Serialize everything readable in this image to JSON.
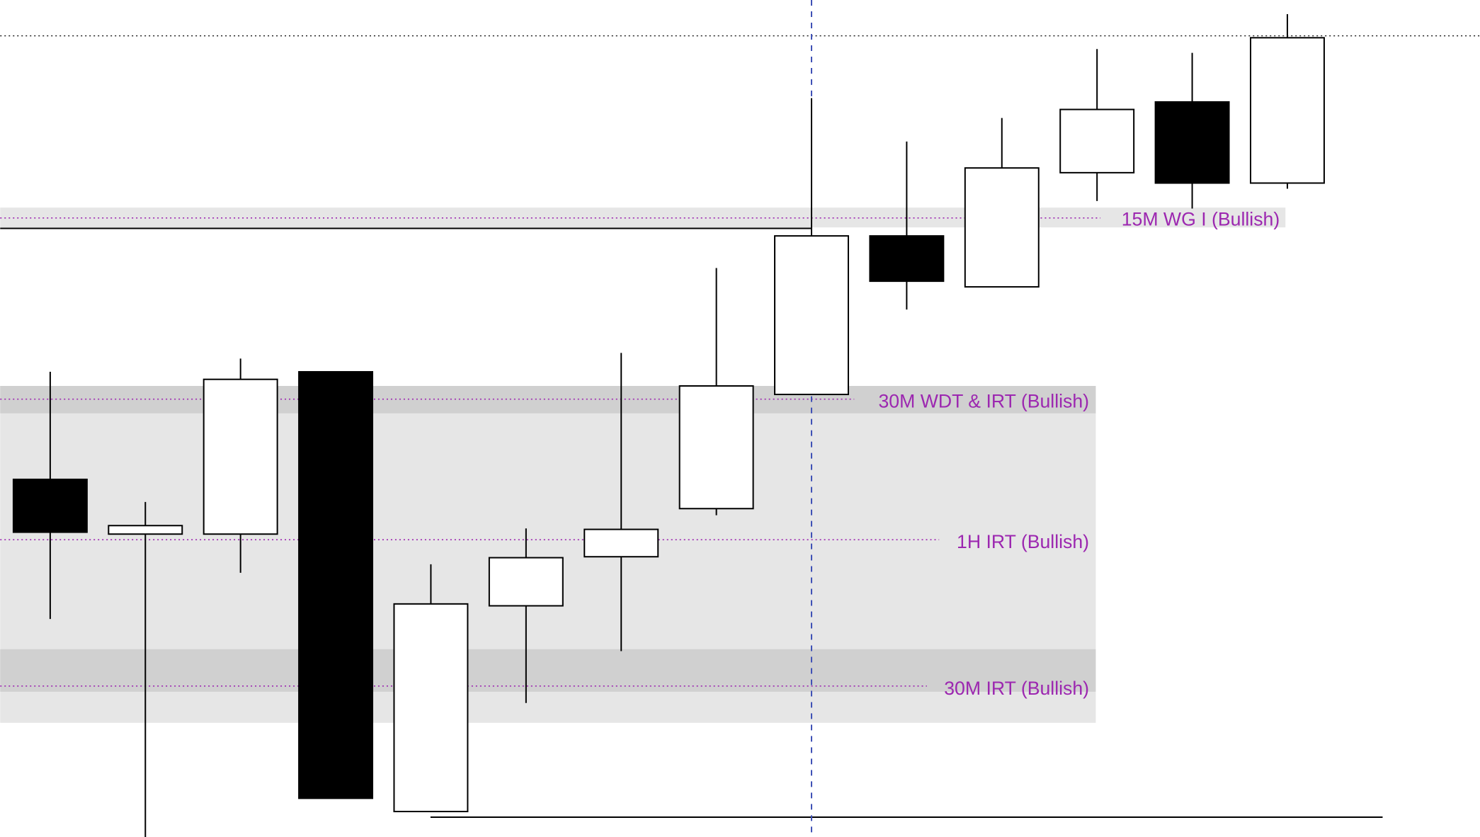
{
  "chart_data": {
    "type": "candlestick",
    "price_units": "relative (no axis printed)",
    "candles": [
      {
        "open": 379,
        "high": 493,
        "low": 231,
        "close": 323
      },
      {
        "open": 321,
        "high": 355,
        "low": 0,
        "close": 330
      },
      {
        "open": 321,
        "high": 507,
        "low": 280,
        "close": 485
      },
      {
        "open": 493,
        "high": 493,
        "low": 41,
        "close": 41
      },
      {
        "open": 27,
        "high": 289,
        "low": 27,
        "close": 247
      },
      {
        "open": 245,
        "high": 327,
        "low": 142,
        "close": 296
      },
      {
        "open": 297,
        "high": 513,
        "low": 197,
        "close": 326
      },
      {
        "open": 348,
        "high": 603,
        "low": 341,
        "close": 478
      },
      {
        "open": 469,
        "high": 783,
        "low": 469,
        "close": 637
      },
      {
        "open": 637,
        "high": 737,
        "low": 559,
        "close": 589
      },
      {
        "open": 583,
        "high": 762,
        "low": 583,
        "close": 709
      },
      {
        "open": 704,
        "high": 835,
        "low": 674,
        "close": 771
      },
      {
        "open": 779,
        "high": 831,
        "low": 666,
        "close": 693
      },
      {
        "open": 693,
        "high": 872,
        "low": 687,
        "close": 847
      }
    ],
    "zones": [
      {
        "label": "15M WG I (Bullish)",
        "top": 667,
        "bottom": 646,
        "level": 656,
        "extends_to_candle": 13
      },
      {
        "label": "30M WDT & IRT (Bullish)",
        "top": 478,
        "bottom": 449,
        "level": 464,
        "extends_to_candle": 11
      },
      {
        "label": "1H IRT (Bullish)",
        "top": 449,
        "bottom": 199,
        "level": 315,
        "extends_to_candle": 11
      },
      {
        "label": "30M IRT (Bullish)",
        "top": 199,
        "bottom": 154,
        "level": 160,
        "extends_to_candle": 11
      }
    ],
    "outer_zone": {
      "top": 478,
      "bottom": 121
    },
    "lines": {
      "top_dotted_level": 849,
      "swing_high_level": 645,
      "swing_low_level": 21,
      "vertical_marker_candle": 9
    },
    "colors": {
      "bull_body": "#ffffff",
      "bear_body": "#000000",
      "label": "#9c27b0",
      "zone_light": "#e6e6e6",
      "zone_dark": "#d0d0d0",
      "vertical_marker": "#3f51b5"
    }
  }
}
